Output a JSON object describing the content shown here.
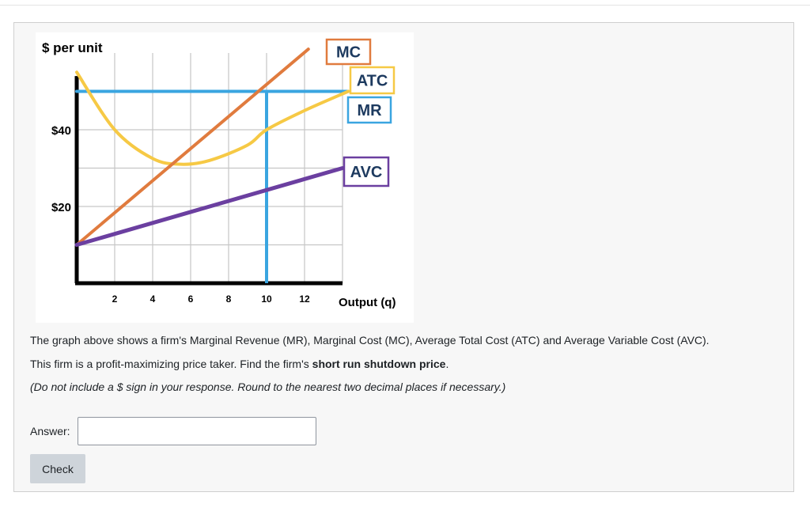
{
  "question": {
    "line1": "The graph above shows a firm's Marginal Revenue (MR), Marginal Cost (MC), Average Total Cost (ATC) and Average Variable Cost (AVC).",
    "line2_pre": "This firm is a profit-maximizing price taker. Find the firm's ",
    "line2_bold": "short run shutdown price",
    "line2_post": ".",
    "line3": "(Do not include a $ sign in your response. Round to the nearest two decimal places if necessary.)"
  },
  "answer": {
    "label": "Answer:",
    "value": "",
    "placeholder": ""
  },
  "check_label": "Check",
  "chart_data": {
    "type": "line",
    "ylabel": "$ per unit",
    "xlabel": "Output (q)",
    "x_ticks": [
      2,
      4,
      6,
      8,
      10,
      12
    ],
    "y_ticks": [
      {
        "value": 40,
        "label": "$40"
      },
      {
        "value": 20,
        "label": "$20"
      }
    ],
    "xlim": [
      0,
      14
    ],
    "ylim": [
      0,
      56
    ],
    "grid": true,
    "series": [
      {
        "name": "MC",
        "color": "#e07b3e",
        "x": [
          0,
          12.2
        ],
        "y": [
          10,
          61
        ]
      },
      {
        "name": "ATC",
        "color": "#f6c945",
        "x": [
          0,
          2,
          4,
          5.5,
          7,
          9,
          10,
          12,
          14.3
        ],
        "y": [
          55,
          40,
          32.5,
          31,
          32,
          36,
          40,
          45,
          50
        ]
      },
      {
        "name": "MR",
        "color": "#3aa5e0",
        "x": [
          0,
          14.3
        ],
        "y": [
          50,
          50
        ]
      },
      {
        "name": "AVC",
        "color": "#6b3fa0",
        "x": [
          0,
          14
        ],
        "y": [
          10,
          30
        ]
      }
    ],
    "annotations": [
      {
        "type": "vline",
        "x": 10,
        "y_from": 0,
        "y_to": 50,
        "color": "#3aa5e0"
      }
    ]
  }
}
